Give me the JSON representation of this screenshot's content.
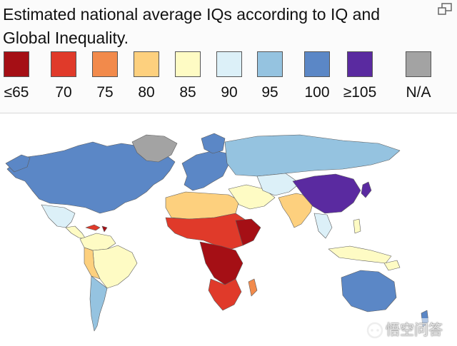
{
  "header": {
    "title_line1": "Estimated national average IQs according to IQ and",
    "title_line2": "Global Inequality."
  },
  "legend": {
    "items": [
      {
        "label": "≤65",
        "color": "#a50f15"
      },
      {
        "label": "70",
        "color": "#e03a2a"
      },
      {
        "label": "75",
        "color": "#f28a4b"
      },
      {
        "label": "80",
        "color": "#fdd07e"
      },
      {
        "label": "85",
        "color": "#fefbc4"
      },
      {
        "label": "90",
        "color": "#dcf0f8"
      },
      {
        "label": "95",
        "color": "#95c3e0"
      },
      {
        "label": "100",
        "color": "#5b87c6"
      },
      {
        "label": "≥105",
        "color": "#5a2aa0"
      },
      {
        "label": "N/A",
        "color": "#a3a3a3"
      }
    ]
  },
  "watermark": {
    "text": "悟空问答"
  }
}
